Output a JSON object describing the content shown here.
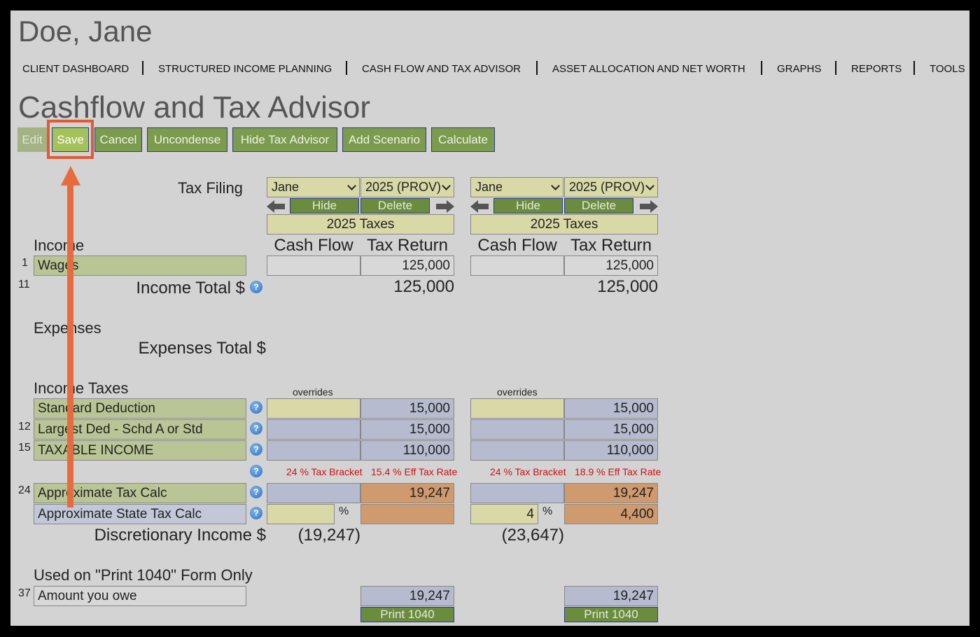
{
  "client": {
    "name": "Doe, Jane"
  },
  "nav": {
    "items": [
      "CLIENT DASHBOARD",
      "STRUCTURED INCOME PLANNING",
      "CASH FLOW AND TAX ADVISOR",
      "ASSET ALLOCATION AND NET WORTH",
      "GRAPHS",
      "REPORTS",
      "TOOLS"
    ]
  },
  "page": {
    "title": "Cashflow and Tax Advisor"
  },
  "toolbar": {
    "edit": "Edit",
    "save": "Save",
    "cancel": "Cancel",
    "uncondense": "Uncondense",
    "hide_tax_advisor": "Hide Tax Advisor",
    "add_scenario": "Add Scenario",
    "calculate": "Calculate"
  },
  "labels": {
    "tax_filing": "Tax Filing",
    "income": "Income",
    "income_total": "Income Total $",
    "expenses": "Expenses",
    "expenses_total": "Expenses Total $",
    "income_taxes": "Income Taxes",
    "discretionary_income": "Discretionary Income $",
    "print_section": "Used on \"Print 1040\" Form Only",
    "overrides": "overrides",
    "cash_flow": "Cash Flow",
    "tax_return": "Tax Return",
    "pct_symbol": "%"
  },
  "rows": {
    "wages": {
      "num": "1",
      "label": "Wages"
    },
    "income_total_num": "11",
    "standard_deduction": {
      "label": "Standard Deduction"
    },
    "largest_ded": {
      "num": "12",
      "label": "Largest Ded - Schd A or Std"
    },
    "taxable_income": {
      "num": "15",
      "label": "TAXABLE INCOME"
    },
    "approx_tax": {
      "num": "24",
      "label": "Approximate Tax Calc"
    },
    "approx_state_tax": {
      "label": "Approximate State Tax Calc"
    },
    "amount_owe": {
      "num": "37",
      "label": "Amount you owe"
    }
  },
  "scenarios": [
    {
      "person": "Jane",
      "year_select": "2025 (PROV)",
      "hide": "Hide",
      "delete": "Delete",
      "year_label": "2025 Taxes",
      "wages_cf": "",
      "wages_tr": "125,000",
      "income_total": "125,000",
      "std_ded": "15,000",
      "largest_ded": "15,000",
      "taxable_income": "110,000",
      "tax_bracket": "24 % Tax Bracket",
      "eff_rate": "15.4 % Eff Tax Rate",
      "approx_tax": "19,247",
      "state_pct": "",
      "state_tax": "",
      "discretionary": "(19,247)",
      "amount_owe": "19,247",
      "print": "Print 1040"
    },
    {
      "person": "Jane",
      "year_select": "2025 (PROV)",
      "hide": "Hide",
      "delete": "Delete",
      "year_label": "2025 Taxes",
      "wages_cf": "",
      "wages_tr": "125,000",
      "income_total": "125,000",
      "std_ded": "15,000",
      "largest_ded": "15,000",
      "taxable_income": "110,000",
      "tax_bracket": "24 % Tax Bracket",
      "eff_rate": "18.9 % Eff Tax Rate",
      "approx_tax": "19,247",
      "state_pct": "4",
      "state_tax": "4,400",
      "discretionary": "(23,647)",
      "amount_owe": "19,247",
      "print": "Print 1040"
    }
  ],
  "colors": {
    "accent": "#7b9b4e",
    "highlight": "#e05a35",
    "bracket_text": "#cc1111"
  }
}
